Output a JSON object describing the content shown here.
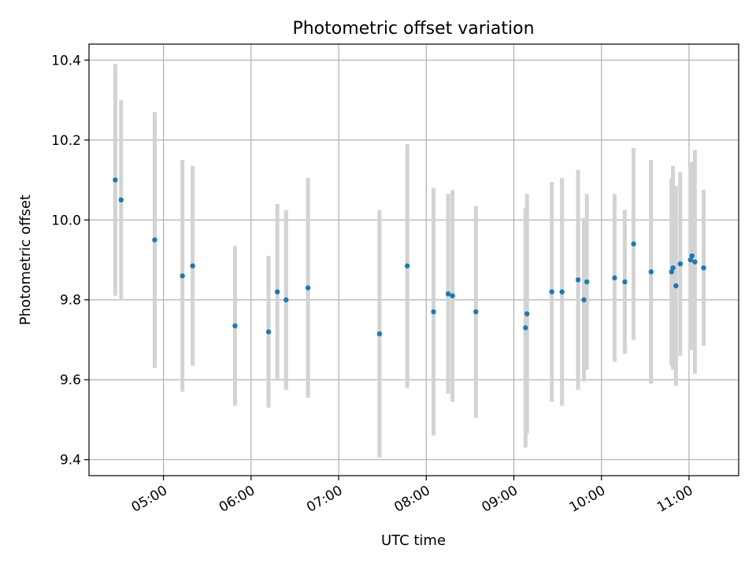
{
  "chart_data": {
    "type": "scatter",
    "title": "Photometric offset variation",
    "xlabel": "UTC time",
    "ylabel": "Photometric offset",
    "x_format": "HH:MM",
    "xlim": [
      "04:09",
      "11:34"
    ],
    "ylim": [
      9.36,
      10.44
    ],
    "x_ticks": [
      "05:00",
      "06:00",
      "07:00",
      "08:00",
      "09:00",
      "10:00",
      "11:00"
    ],
    "y_ticks": [
      "9.4",
      "9.6",
      "9.8",
      "10.0",
      "10.2",
      "10.4"
    ],
    "grid": true,
    "legend": "none",
    "marker_color": "#1f77b4",
    "errorbar_color": "#d3d3d3",
    "points": [
      {
        "x": "04:27",
        "y": 10.1,
        "err": 0.29
      },
      {
        "x": "04:31",
        "y": 10.05,
        "err": 0.25
      },
      {
        "x": "04:54",
        "y": 9.95,
        "err": 0.32
      },
      {
        "x": "05:13",
        "y": 9.86,
        "err": 0.29
      },
      {
        "x": "05:20",
        "y": 9.885,
        "err": 0.25
      },
      {
        "x": "05:49",
        "y": 9.735,
        "err": 0.2
      },
      {
        "x": "06:12",
        "y": 9.72,
        "err": 0.19
      },
      {
        "x": "06:18",
        "y": 9.82,
        "err": 0.22
      },
      {
        "x": "06:24",
        "y": 9.8,
        "err": 0.225
      },
      {
        "x": "06:39",
        "y": 9.83,
        "err": 0.275
      },
      {
        "x": "07:28",
        "y": 9.715,
        "err": 0.31
      },
      {
        "x": "07:47",
        "y": 9.885,
        "err": 0.305
      },
      {
        "x": "08:05",
        "y": 9.77,
        "err": 0.31
      },
      {
        "x": "08:15",
        "y": 9.815,
        "err": 0.25
      },
      {
        "x": "08:18",
        "y": 9.81,
        "err": 0.265
      },
      {
        "x": "08:34",
        "y": 9.77,
        "err": 0.265
      },
      {
        "x": "09:08",
        "y": 9.73,
        "err": 0.3
      },
      {
        "x": "09:09",
        "y": 9.765,
        "err": 0.3
      },
      {
        "x": "09:26",
        "y": 9.82,
        "err": 0.275
      },
      {
        "x": "09:33",
        "y": 9.82,
        "err": 0.285
      },
      {
        "x": "09:44",
        "y": 9.85,
        "err": 0.275
      },
      {
        "x": "09:48",
        "y": 9.8,
        "err": 0.205
      },
      {
        "x": "09:50",
        "y": 9.845,
        "err": 0.22
      },
      {
        "x": "10:09",
        "y": 9.855,
        "err": 0.21
      },
      {
        "x": "10:16",
        "y": 9.845,
        "err": 0.18
      },
      {
        "x": "10:22",
        "y": 9.94,
        "err": 0.24
      },
      {
        "x": "10:34",
        "y": 9.87,
        "err": 0.28
      },
      {
        "x": "10:48",
        "y": 9.87,
        "err": 0.235
      },
      {
        "x": "10:49",
        "y": 9.88,
        "err": 0.255
      },
      {
        "x": "10:51",
        "y": 9.835,
        "err": 0.25
      },
      {
        "x": "10:54",
        "y": 9.89,
        "err": 0.23
      },
      {
        "x": "11:01",
        "y": 9.9,
        "err": 0.225
      },
      {
        "x": "11:02",
        "y": 9.91,
        "err": 0.235
      },
      {
        "x": "11:04",
        "y": 9.895,
        "err": 0.28
      },
      {
        "x": "11:10",
        "y": 9.88,
        "err": 0.195
      }
    ]
  }
}
